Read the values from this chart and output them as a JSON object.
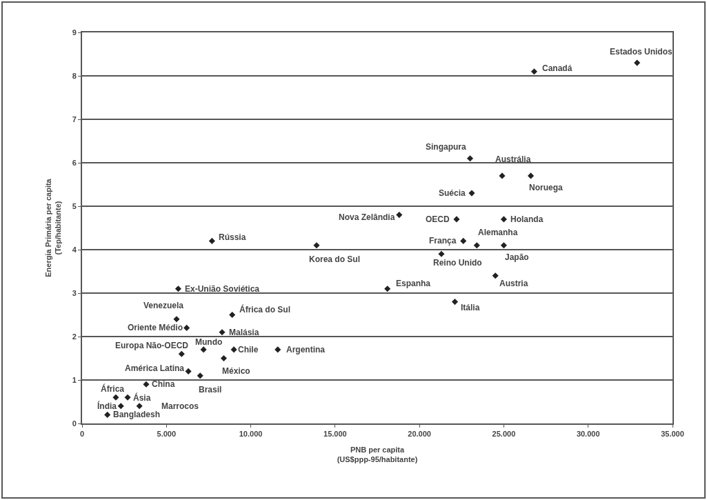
{
  "chart_data": {
    "type": "scatter",
    "xlabel": "PNB per capita\n(US$ppp-95/habitante)",
    "ylabel": "Energia Primária per capita\n(Tep/habitante)",
    "x": [
      32900,
      26800,
      23000,
      24900,
      26600,
      23100,
      18800,
      22200,
      25000,
      22600,
      23400,
      25000,
      21300,
      24500,
      7700,
      13900,
      18100,
      22100,
      5700,
      5600,
      6200,
      8900,
      8300,
      5900,
      7200,
      9000,
      11600,
      8400,
      6300,
      7000,
      3800,
      2000,
      2700,
      2300,
      3400,
      1500
    ],
    "values": [
      8.3,
      8.1,
      6.1,
      5.7,
      5.7,
      5.3,
      4.8,
      4.7,
      4.7,
      4.2,
      4.1,
      4.1,
      3.9,
      3.4,
      4.2,
      4.1,
      3.1,
      2.8,
      3.1,
      2.4,
      2.2,
      2.5,
      2.1,
      1.6,
      1.7,
      1.7,
      1.7,
      1.5,
      1.2,
      1.1,
      0.9,
      0.6,
      0.6,
      0.4,
      0.4,
      0.2
    ],
    "color": "#222222",
    "marker": "diamond",
    "grid": "y",
    "xlim": [
      0,
      35000
    ],
    "xticks": [
      0,
      {
        "value": 5000,
        "label": "5.000"
      },
      {
        "value": 10000,
        "label": "10.000"
      },
      {
        "value": 15000,
        "label": "15.000"
      },
      {
        "value": 20000,
        "label": "20.000"
      },
      {
        "value": 25000,
        "label": "25.000"
      },
      {
        "value": 30000,
        "label": "30.000"
      },
      {
        "value": 35000,
        "label": "35.000"
      }
    ],
    "ylim": [
      0,
      9
    ],
    "yticks": [
      0,
      1,
      2,
      3,
      4,
      5,
      6,
      7,
      8,
      9
    ],
    "annotations": [
      {
        "text": "Estados Unidos",
        "x": 32900,
        "y": 8.3
      },
      {
        "text": "Canadá",
        "x": 26800,
        "y": 8.1
      },
      {
        "text": "Singapura",
        "x": 23000,
        "y": 6.1
      },
      {
        "text": "Austrália",
        "x": 24900,
        "y": 5.7
      },
      {
        "text": "Noruega",
        "x": 26600,
        "y": 5.7
      },
      {
        "text": "Suécia",
        "x": 23100,
        "y": 5.3
      },
      {
        "text": "Nova Zelândia",
        "x": 18800,
        "y": 4.8
      },
      {
        "text": "OECD",
        "x": 22200,
        "y": 4.7
      },
      {
        "text": "Holanda",
        "x": 25000,
        "y": 4.7
      },
      {
        "text": "França",
        "x": 22600,
        "y": 4.2
      },
      {
        "text": "Alemanha",
        "x": 23400,
        "y": 4.1
      },
      {
        "text": "Japão",
        "x": 25000,
        "y": 4.1
      },
      {
        "text": "Reino Unido",
        "x": 21300,
        "y": 3.9
      },
      {
        "text": "Austria",
        "x": 24500,
        "y": 3.4
      },
      {
        "text": "Rússia",
        "x": 7700,
        "y": 4.2
      },
      {
        "text": "Korea do Sul",
        "x": 13900,
        "y": 4.1
      },
      {
        "text": "Espanha",
        "x": 18100,
        "y": 3.1
      },
      {
        "text": "Itália",
        "x": 22100,
        "y": 2.8
      },
      {
        "text": "Ex-União Soviética",
        "x": 5700,
        "y": 3.1
      },
      {
        "text": "Venezuela",
        "x": 5600,
        "y": 2.4
      },
      {
        "text": "Oriente Médio",
        "x": 6200,
        "y": 2.2
      },
      {
        "text": "África do Sul",
        "x": 8900,
        "y": 2.5
      },
      {
        "text": "Malásia",
        "x": 8300,
        "y": 2.1
      },
      {
        "text": "Europa Não-OECD",
        "x": 5900,
        "y": 1.6
      },
      {
        "text": "Mundo",
        "x": 7200,
        "y": 1.7
      },
      {
        "text": "Chile",
        "x": 9000,
        "y": 1.7
      },
      {
        "text": "Argentina",
        "x": 11600,
        "y": 1.7
      },
      {
        "text": "México",
        "x": 8400,
        "y": 1.5
      },
      {
        "text": "América Latina",
        "x": 6300,
        "y": 1.2
      },
      {
        "text": "Brasil",
        "x": 7000,
        "y": 1.1
      },
      {
        "text": "China",
        "x": 3800,
        "y": 0.9
      },
      {
        "text": "África",
        "x": 2000,
        "y": 0.6
      },
      {
        "text": "Ásia",
        "x": 2700,
        "y": 0.6
      },
      {
        "text": "Índia",
        "x": 2300,
        "y": 0.4
      },
      {
        "text": "Marrocos",
        "x": 3400,
        "y": 0.4
      },
      {
        "text": "Bangladesh",
        "x": 1500,
        "y": 0.2
      }
    ]
  }
}
